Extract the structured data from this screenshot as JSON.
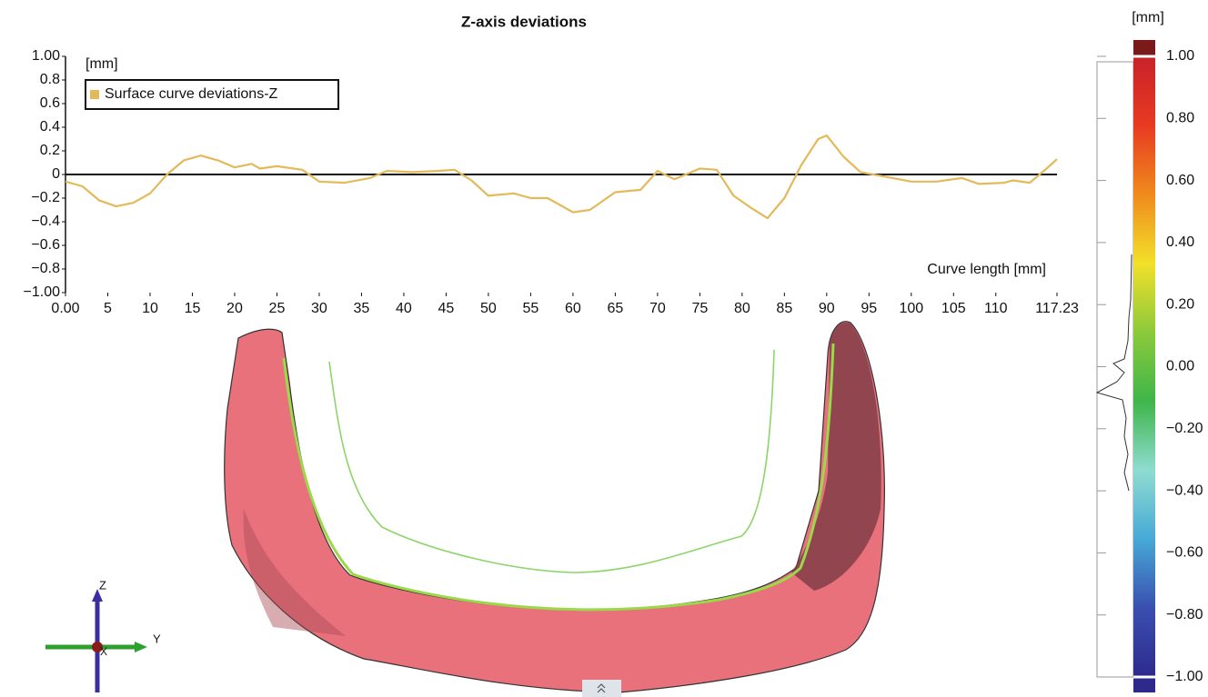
{
  "chart_data": [
    {
      "type": "line",
      "title": "Z-axis deviations",
      "y_label": "[mm]",
      "x_label": "Curve length [mm]",
      "x": [
        0,
        2,
        4,
        6,
        8,
        10,
        12,
        14,
        16,
        18,
        20,
        22,
        23,
        25,
        28,
        30,
        33,
        36,
        38,
        41,
        44,
        46,
        48,
        50,
        53,
        55,
        57,
        60,
        62,
        65,
        68,
        70,
        72,
        75,
        77,
        79,
        81,
        83,
        85,
        87,
        89,
        90,
        92,
        94,
        97,
        100,
        103,
        106,
        108,
        111,
        112,
        114,
        116,
        117.23
      ],
      "series": [
        {
          "name": "Surface curve deviations-Z",
          "color": "#e3b95a",
          "values": [
            -0.06,
            -0.1,
            -0.22,
            -0.27,
            -0.24,
            -0.16,
            0.0,
            0.12,
            0.16,
            0.12,
            0.06,
            0.09,
            0.05,
            0.07,
            0.04,
            -0.06,
            -0.07,
            -0.03,
            0.03,
            0.02,
            0.03,
            0.04,
            -0.05,
            -0.18,
            -0.16,
            -0.2,
            -0.2,
            -0.32,
            -0.3,
            -0.15,
            -0.13,
            0.03,
            -0.04,
            0.05,
            0.04,
            -0.18,
            -0.28,
            -0.37,
            -0.2,
            0.08,
            0.3,
            0.33,
            0.15,
            0.02,
            -0.02,
            -0.06,
            -0.06,
            -0.03,
            -0.08,
            -0.07,
            -0.05,
            -0.07,
            0.05,
            0.13
          ]
        }
      ],
      "xlim": [
        0,
        117.23
      ],
      "xticks": [
        {
          "value": 0,
          "label": "0.00"
        },
        5,
        10,
        15,
        20,
        25,
        30,
        35,
        40,
        45,
        50,
        55,
        60,
        65,
        70,
        75,
        80,
        85,
        90,
        95,
        100,
        105,
        110,
        117.23
      ],
      "ylim": [
        -1,
        1
      ],
      "yticks": [
        {
          "value": -1,
          "label": "−1.00"
        },
        {
          "value": -0.8,
          "label": "−0.8"
        },
        {
          "value": -0.6,
          "label": "−0.6"
        },
        {
          "value": -0.4,
          "label": "−0.4"
        },
        {
          "value": -0.2,
          "label": "−0.2"
        },
        0,
        0.2,
        0.4,
        0.6,
        0.8,
        {
          "value": 1,
          "label": "1.00"
        }
      ]
    },
    {
      "type": "colorbar",
      "unit_label": "[mm]",
      "ylim": [
        -1,
        1
      ],
      "colors": [
        "#2e2a8c",
        "#3a4fb0",
        "#47a9d6",
        "#8fdcd0",
        "#3fb54a",
        "#8cca3a",
        "#f2e02a",
        "#f08a1c",
        "#e83a22",
        "#c8222a"
      ],
      "cap_colors": [
        "#7a1a1a",
        "#2e2a8c"
      ],
      "yticks": [
        {
          "value": 1,
          "label": "1.00"
        },
        {
          "value": 0.8,
          "label": "0.80"
        },
        {
          "value": 0.6,
          "label": "0.60"
        },
        {
          "value": 0.4,
          "label": "0.40"
        },
        {
          "value": 0.2,
          "label": "0.20"
        },
        {
          "value": 0,
          "label": "0.00"
        },
        {
          "value": -0.2,
          "label": "−0.20"
        },
        {
          "value": -0.4,
          "label": "−0.40"
        },
        {
          "value": -0.6,
          "label": "−0.60"
        },
        {
          "value": -0.8,
          "label": "−0.80"
        },
        {
          "value": -1,
          "label": "−1.00"
        }
      ]
    }
  ],
  "view": {
    "axis_z": "Z",
    "axis_y": "Y",
    "axis_x": "X"
  }
}
